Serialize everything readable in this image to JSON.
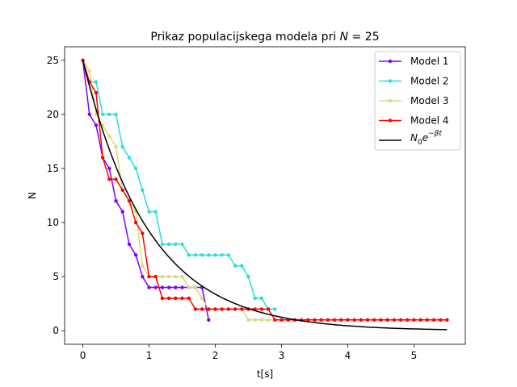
{
  "chart_data": {
    "type": "line",
    "title_prefix": "Prikaz populacijskega modela pri ",
    "title_var": "N",
    "title_suffix": " = 25",
    "xlabel": "t[s]",
    "ylabel": "N",
    "xlim": [
      -0.275,
      5.775
    ],
    "ylim": [
      -1.25,
      26.25
    ],
    "xticks": [
      0,
      1,
      2,
      3,
      4,
      5
    ],
    "yticks": [
      0,
      5,
      10,
      15,
      20,
      25
    ],
    "grid": false,
    "legend_placement": "top-right",
    "series": [
      {
        "name": "Model 1",
        "color": "#8000ff",
        "marker": true,
        "x": [
          0,
          0.1,
          0.2,
          0.3,
          0.4,
          0.5,
          0.6,
          0.7,
          0.8,
          0.9,
          1.0,
          1.1,
          1.2,
          1.3,
          1.4,
          1.5,
          1.6,
          1.7,
          1.8,
          1.9
        ],
        "y": [
          25,
          20,
          19,
          16,
          15,
          12,
          11,
          8,
          7,
          5,
          4,
          4,
          4,
          4,
          4,
          4,
          4,
          4,
          4,
          1
        ]
      },
      {
        "name": "Model 2",
        "color": "#2adddd",
        "marker": true,
        "x": [
          0,
          0.1,
          0.2,
          0.3,
          0.4,
          0.5,
          0.6,
          0.7,
          0.8,
          0.9,
          1.0,
          1.1,
          1.2,
          1.3,
          1.4,
          1.5,
          1.6,
          1.7,
          1.8,
          1.9,
          2.0,
          2.1,
          2.2,
          2.3,
          2.4,
          2.5,
          2.6,
          2.7,
          2.8,
          2.9
        ],
        "y": [
          25,
          23,
          23,
          20,
          20,
          20,
          17,
          16,
          15,
          13,
          11,
          11,
          8,
          8,
          8,
          8,
          7,
          7,
          7,
          7,
          7,
          7,
          7,
          6,
          6,
          5,
          3,
          3,
          2,
          2
        ]
      },
      {
        "name": "Model 3",
        "color": "#d4dd80",
        "marker": true,
        "x": [
          0,
          0.1,
          0.2,
          0.3,
          0.4,
          0.5,
          0.6,
          0.7,
          0.8,
          0.9,
          1.0,
          1.1,
          1.2,
          1.3,
          1.4,
          1.5,
          1.6,
          1.7,
          1.8,
          1.9,
          2.0,
          2.1,
          2.2,
          2.3,
          2.4,
          2.5,
          2.6,
          2.7,
          2.8,
          2.9
        ],
        "y": [
          25,
          24,
          20,
          19,
          18,
          17,
          13,
          12,
          11,
          6,
          5,
          5,
          5,
          5,
          5,
          5,
          4,
          4,
          3,
          2,
          2,
          2,
          2,
          2,
          2,
          1,
          1,
          1,
          1,
          1
        ]
      },
      {
        "name": "Model 4",
        "color": "#ff0000",
        "marker": true,
        "x": [
          0,
          0.1,
          0.2,
          0.3,
          0.4,
          0.5,
          0.6,
          0.7,
          0.8,
          0.9,
          1.0,
          1.1,
          1.2,
          1.3,
          1.4,
          1.5,
          1.6,
          1.7,
          1.8,
          1.9,
          2.0,
          2.1,
          2.2,
          2.3,
          2.4,
          2.5,
          2.6,
          2.7,
          2.8,
          2.9,
          3.0,
          3.1,
          3.2,
          3.3,
          3.4,
          3.5,
          3.6,
          3.7,
          3.8,
          3.9,
          4.0,
          4.1,
          4.2,
          4.3,
          4.4,
          4.5,
          4.6,
          4.7,
          4.8,
          4.9,
          5.0,
          5.1,
          5.2,
          5.3,
          5.4,
          5.5
        ],
        "y": [
          25,
          23,
          22,
          16,
          14,
          14,
          13,
          12,
          10,
          9,
          5,
          5,
          3,
          3,
          3,
          3,
          3,
          2,
          2,
          2,
          2,
          2,
          2,
          2,
          2,
          2,
          2,
          2,
          2,
          1,
          1,
          1,
          1,
          1,
          1,
          1,
          1,
          1,
          1,
          1,
          1,
          1,
          1,
          1,
          1,
          1,
          1,
          1,
          1,
          1,
          1,
          1,
          1,
          1,
          1,
          1
        ]
      },
      {
        "name_base": "N",
        "name_sub": "0",
        "name_e": "e",
        "name_exp": "−βt",
        "color": "#000000",
        "marker": false,
        "function": "N0*exp(-beta*t)",
        "N0": 25,
        "beta": 1.0,
        "x_range": [
          0,
          5.5
        ]
      }
    ]
  }
}
